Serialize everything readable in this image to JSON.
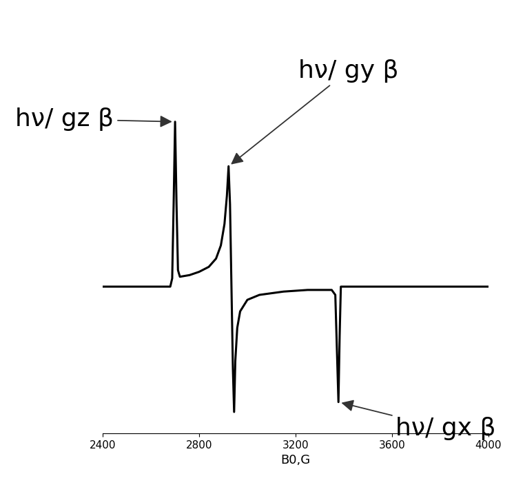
{
  "chart_data": {
    "type": "line",
    "xlabel": "B0,G",
    "x": [
      2400,
      2680,
      2688,
      2694,
      2700,
      2706,
      2712,
      2720,
      2760,
      2800,
      2840,
      2870,
      2890,
      2905,
      2915,
      2922,
      2928,
      2934,
      2940,
      2945,
      2950,
      2958,
      2970,
      3000,
      3050,
      3150,
      3250,
      3350,
      3365,
      3372,
      3378,
      3383,
      3388,
      3400,
      4000
    ],
    "values": [
      0,
      0,
      0.05,
      0.5,
      1.0,
      0.5,
      0.1,
      0.06,
      0.07,
      0.09,
      0.12,
      0.17,
      0.25,
      0.38,
      0.55,
      0.73,
      0.5,
      0.0,
      -0.5,
      -0.76,
      -0.45,
      -0.25,
      -0.15,
      -0.08,
      -0.05,
      -0.03,
      -0.02,
      -0.02,
      -0.05,
      -0.4,
      -0.7,
      -0.3,
      0.0,
      0,
      0
    ],
    "color": "#000000",
    "xlim": [
      2400,
      4000
    ],
    "xticks": [
      2400,
      2800,
      3200,
      3600,
      4000
    ],
    "ylim": [
      -0.85,
      1.15
    ],
    "tick_labels": "x",
    "annotations": [
      {
        "text": "hν/ gz β",
        "x": 2700
      },
      {
        "text": "hν/ gy β",
        "x": 2922
      },
      {
        "text": "hν/ gx β",
        "x": 3378
      }
    ]
  }
}
